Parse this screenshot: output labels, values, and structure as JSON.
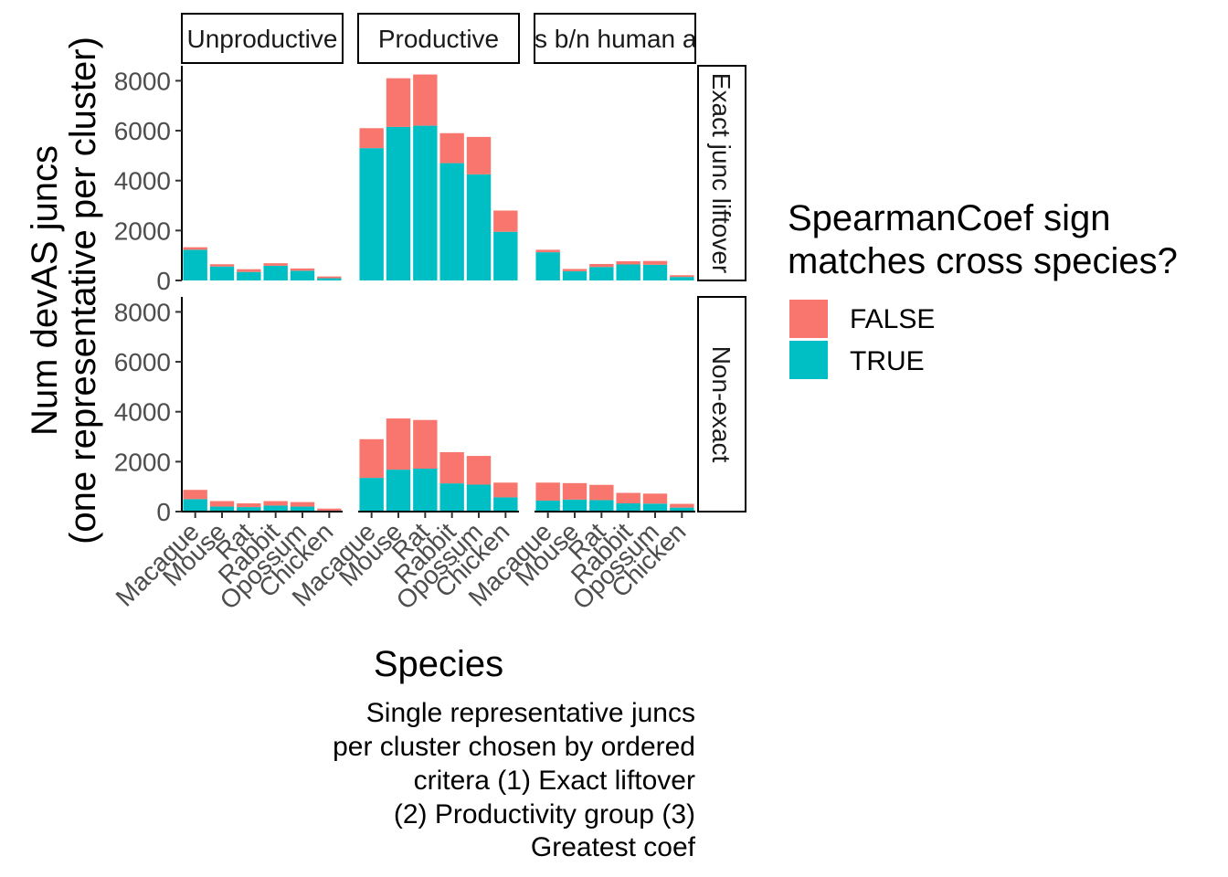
{
  "chart_data": {
    "type": "bar",
    "stacked": true,
    "facet_columns": [
      "Unproductive",
      "Productive",
      "Mismatches b/n human and species"
    ],
    "facet_rows": [
      "Exact junc liftover",
      "Non-exact"
    ],
    "categories": [
      "Macaque",
      "Mouse",
      "Rat",
      "Rabbit",
      "Opossum",
      "Chicken"
    ],
    "xlabel": "Species",
    "ylabel_lines": [
      "Num devAS juncs",
      "(one representative per cluster)"
    ],
    "y_ticks": [
      "0",
      "2000",
      "4000",
      "6000",
      "8000"
    ],
    "ylim": [
      0,
      8600
    ],
    "legend": {
      "title_lines": [
        "SpearmanCoef sign",
        "matches cross species?"
      ],
      "position": "right",
      "entries": [
        {
          "label": "FALSE",
          "color": "#F8766D"
        },
        {
          "label": "TRUE",
          "color": "#00BFC4"
        }
      ]
    },
    "caption_lines": [
      "Single representative juncs",
      "per cluster chosen by ordered",
      "critera (1) Exact liftover",
      "(2) Productivity group (3)",
      "Greatest coef"
    ],
    "panels": [
      {
        "row": "Exact junc liftover",
        "col": "Unproductive",
        "series": [
          {
            "name": "TRUE",
            "values": [
              1230,
              560,
              340,
              590,
              390,
              90
            ]
          },
          {
            "name": "FALSE",
            "values": [
              100,
              90,
              110,
              100,
              90,
              70
            ]
          }
        ]
      },
      {
        "row": "Exact junc liftover",
        "col": "Productive",
        "series": [
          {
            "name": "TRUE",
            "values": [
              5300,
              6150,
              6200,
              4700,
              4250,
              1950
            ]
          },
          {
            "name": "FALSE",
            "values": [
              800,
              1950,
              2050,
              1200,
              1500,
              850
            ]
          }
        ]
      },
      {
        "row": "Exact junc liftover",
        "col": "Mismatches b/n human and species",
        "series": [
          {
            "name": "TRUE",
            "values": [
              1130,
              370,
              540,
              640,
              630,
              140
            ]
          },
          {
            "name": "FALSE",
            "values": [
              100,
              90,
              120,
              130,
              150,
              70
            ]
          }
        ]
      },
      {
        "row": "Non-exact",
        "col": "Unproductive",
        "series": [
          {
            "name": "TRUE",
            "values": [
              500,
              200,
              180,
              240,
              200,
              40
            ]
          },
          {
            "name": "FALSE",
            "values": [
              370,
              220,
              150,
              180,
              180,
              80
            ]
          }
        ]
      },
      {
        "row": "Non-exact",
        "col": "Productive",
        "series": [
          {
            "name": "TRUE",
            "values": [
              1350,
              1680,
              1720,
              1130,
              1080,
              570
            ]
          },
          {
            "name": "FALSE",
            "values": [
              1550,
              2050,
              1950,
              1250,
              1150,
              590
            ]
          }
        ]
      },
      {
        "row": "Non-exact",
        "col": "Mismatches b/n human and species",
        "series": [
          {
            "name": "TRUE",
            "values": [
              440,
              480,
              460,
              330,
              320,
              160
            ]
          },
          {
            "name": "FALSE",
            "values": [
              720,
              660,
              610,
              420,
              400,
              150
            ]
          }
        ]
      }
    ]
  }
}
